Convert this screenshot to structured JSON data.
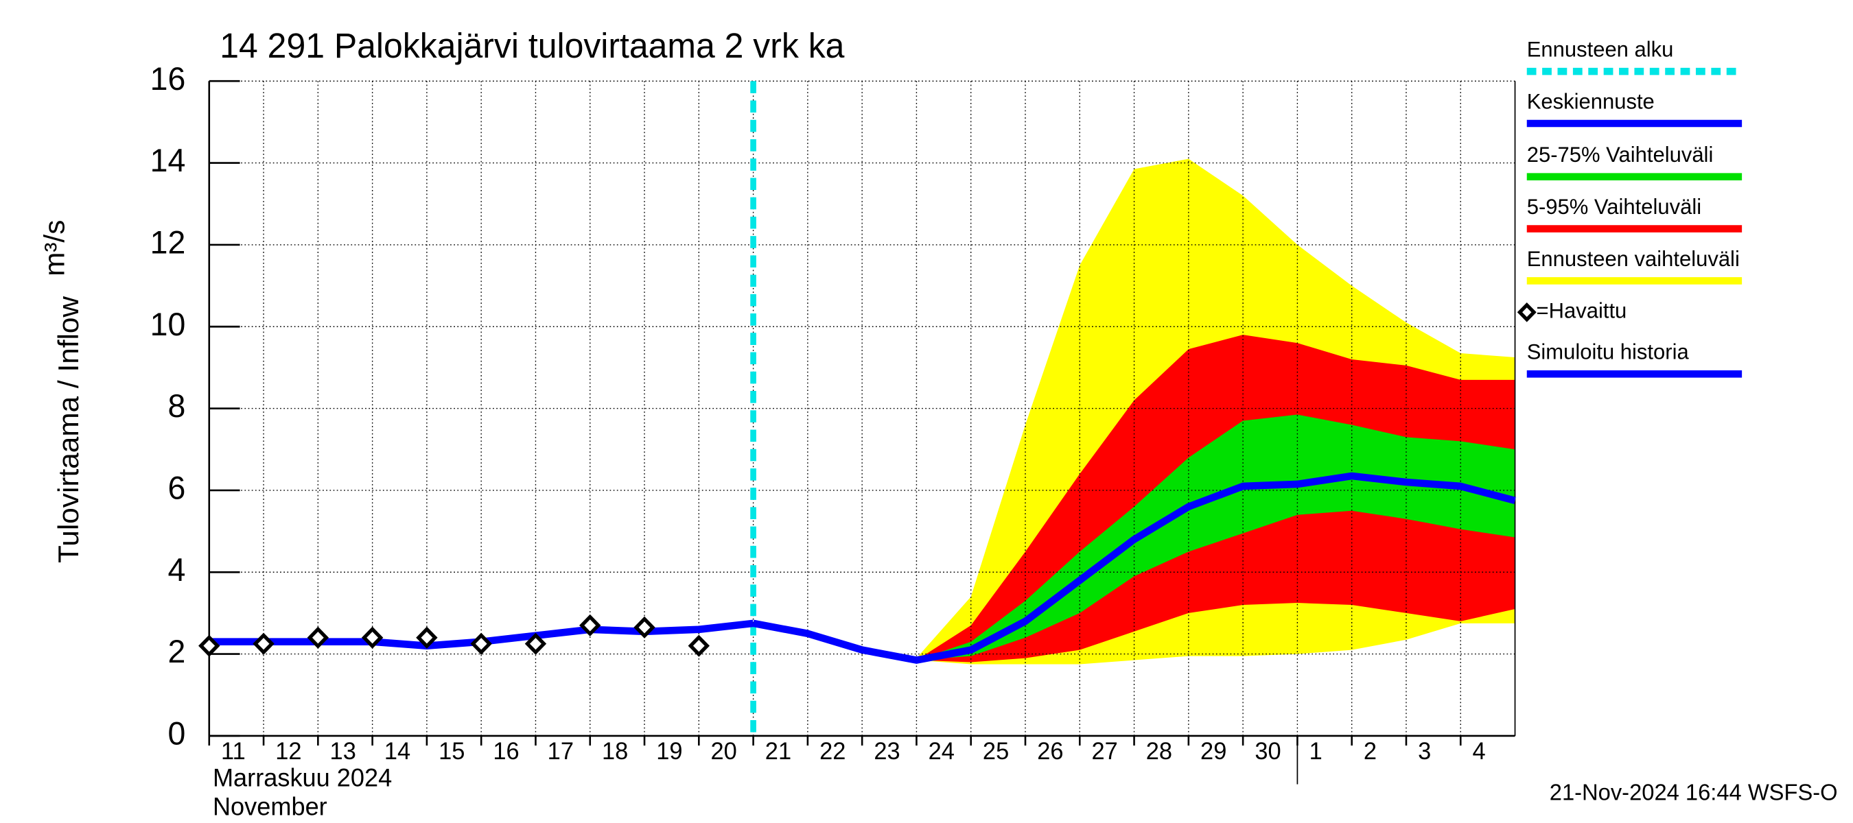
{
  "chart_data": {
    "type": "line",
    "title": "14 291 Palokkajärvi tulovirtaama 2 vrk ka",
    "y_label": "Tulovirtaama / Inflow",
    "y_unit": "m³/s",
    "month_labels": [
      "Marraskuu 2024",
      "November"
    ],
    "timestamp": "21-Nov-2024 16:44 WSFS-O",
    "xlim": [
      0,
      24
    ],
    "xticks": [
      {
        "value": 0,
        "label": "11"
      },
      {
        "value": 1,
        "label": "12"
      },
      {
        "value": 2,
        "label": "13"
      },
      {
        "value": 3,
        "label": "14"
      },
      {
        "value": 4,
        "label": "15"
      },
      {
        "value": 5,
        "label": "16"
      },
      {
        "value": 6,
        "label": "17"
      },
      {
        "value": 7,
        "label": "18"
      },
      {
        "value": 8,
        "label": "19"
      },
      {
        "value": 9,
        "label": "20"
      },
      {
        "value": 10,
        "label": "21"
      },
      {
        "value": 11,
        "label": "22"
      },
      {
        "value": 12,
        "label": "23"
      },
      {
        "value": 13,
        "label": "24"
      },
      {
        "value": 14,
        "label": "25"
      },
      {
        "value": 15,
        "label": "26"
      },
      {
        "value": 16,
        "label": "27"
      },
      {
        "value": 17,
        "label": "28"
      },
      {
        "value": 18,
        "label": "29"
      },
      {
        "value": 19,
        "label": "30"
      },
      {
        "value": 20,
        "label": "1"
      },
      {
        "value": 21,
        "label": "2"
      },
      {
        "value": 22,
        "label": "3"
      },
      {
        "value": 23,
        "label": "4"
      }
    ],
    "month_separator_x": 20,
    "ylim": [
      0,
      16
    ],
    "yticks": [
      0,
      2,
      4,
      6,
      8,
      10,
      12,
      14,
      16
    ],
    "grid": true,
    "forecast_start": {
      "name": "Ennusteen alku",
      "x": 10,
      "color": "#00e5e5"
    },
    "bands": [
      {
        "name": "Ennusteen vaihteluväli",
        "color": "#ffff00",
        "x": [
          10,
          11,
          12,
          13,
          14,
          15,
          16,
          17,
          18,
          19,
          20,
          21,
          22,
          23,
          24
        ],
        "low": [
          2.75,
          2.5,
          2.1,
          1.85,
          1.75,
          1.75,
          1.75,
          1.85,
          1.95,
          1.95,
          2.0,
          2.1,
          2.35,
          2.75,
          2.75
        ],
        "high": [
          2.75,
          2.5,
          2.15,
          1.9,
          3.4,
          7.6,
          11.5,
          13.85,
          14.1,
          13.2,
          12.0,
          11.0,
          10.1,
          9.35,
          9.25
        ]
      },
      {
        "name": "5-95% Vaihteluväli",
        "color": "#ff0000",
        "x": [
          10,
          11,
          12,
          13,
          14,
          15,
          16,
          17,
          18,
          19,
          20,
          21,
          22,
          23,
          24
        ],
        "low": [
          2.75,
          2.5,
          2.1,
          1.85,
          1.8,
          1.9,
          2.1,
          2.55,
          3.0,
          3.2,
          3.25,
          3.2,
          3.0,
          2.8,
          3.1
        ],
        "high": [
          2.75,
          2.5,
          2.1,
          1.85,
          2.7,
          4.5,
          6.4,
          8.2,
          9.45,
          9.8,
          9.6,
          9.2,
          9.05,
          8.7,
          8.7
        ]
      },
      {
        "name": "25-75% Vaihteluväli",
        "color": "#00e000",
        "x": [
          10,
          11,
          12,
          13,
          14,
          15,
          16,
          17,
          18,
          19,
          20,
          21,
          22,
          23,
          24
        ],
        "low": [
          2.75,
          2.5,
          2.1,
          1.85,
          1.95,
          2.4,
          3.0,
          3.9,
          4.5,
          4.95,
          5.4,
          5.5,
          5.3,
          5.05,
          4.85
        ],
        "high": [
          2.75,
          2.5,
          2.1,
          1.85,
          2.3,
          3.3,
          4.5,
          5.6,
          6.8,
          7.7,
          7.85,
          7.6,
          7.3,
          7.2,
          7.0
        ]
      }
    ],
    "series": [
      {
        "name": "Simuloitu historia",
        "color": "#0000ff",
        "x": [
          0,
          1,
          2,
          3,
          4,
          5,
          6,
          7,
          8,
          9,
          10
        ],
        "values": [
          2.3,
          2.3,
          2.3,
          2.3,
          2.2,
          2.3,
          2.45,
          2.6,
          2.55,
          2.6,
          2.75
        ]
      },
      {
        "name": "Keskiennuste",
        "color": "#0000ff",
        "x": [
          10,
          11,
          12,
          13,
          14,
          15,
          16,
          17,
          18,
          19,
          20,
          21,
          22,
          23,
          24
        ],
        "values": [
          2.75,
          2.5,
          2.1,
          1.85,
          2.1,
          2.8,
          3.8,
          4.8,
          5.6,
          6.1,
          6.15,
          6.35,
          6.2,
          6.1,
          5.75
        ]
      }
    ],
    "observed": {
      "name": "=Havaittu",
      "x": [
        0,
        1,
        2,
        3,
        4,
        5,
        6,
        7,
        8,
        9
      ],
      "values": [
        2.2,
        2.25,
        2.4,
        2.4,
        2.4,
        2.25,
        2.25,
        2.7,
        2.65,
        2.2
      ]
    }
  }
}
